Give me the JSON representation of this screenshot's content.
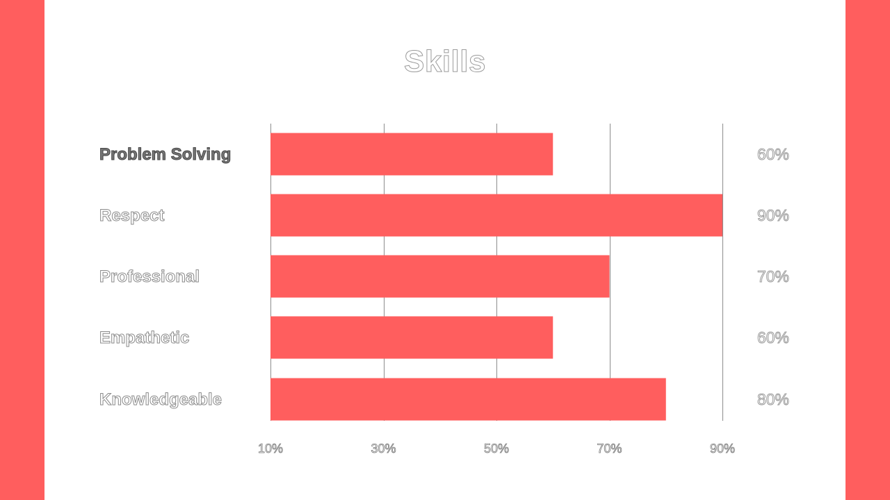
{
  "slide": {
    "title": "Skills",
    "accent_color": "#ff5e5e"
  },
  "chart_data": {
    "type": "bar",
    "orientation": "horizontal",
    "title": "Skills",
    "categories": [
      "Problem Solving",
      "Respect",
      "Professional",
      "Empathetic",
      "Knowledgeable"
    ],
    "values": [
      60,
      90,
      70,
      60,
      80
    ],
    "value_labels": [
      "60%",
      "90%",
      "70%",
      "60%",
      "80%"
    ],
    "xlim": [
      10,
      90
    ],
    "xticks": [
      10,
      30,
      50,
      70,
      90
    ],
    "xtick_labels": [
      "10%",
      "30%",
      "50%",
      "70%",
      "90%"
    ],
    "grid": true,
    "bar_color": "#ff5e5e"
  }
}
